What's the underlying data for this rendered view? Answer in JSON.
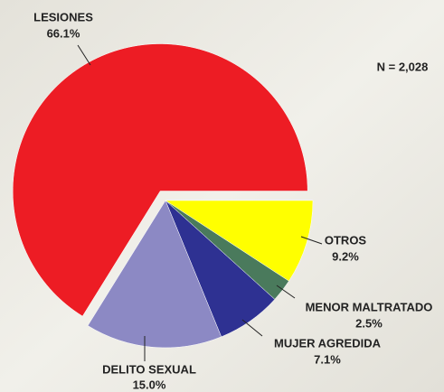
{
  "chart_data": {
    "type": "pie",
    "note": "N = 2,028",
    "categories": [
      "LESIONES",
      "OTROS",
      "MENOR MALTRATADO",
      "MUJER AGREDIDA",
      "DELITO SEXUAL"
    ],
    "values": [
      66.1,
      9.2,
      2.5,
      7.1,
      15.0
    ],
    "value_labels": [
      "66.1%",
      "9.2%",
      "2.5%",
      "7.1%",
      "15.0%"
    ],
    "colors": [
      "#ed1c24",
      "#ffff00",
      "#4a7a5c",
      "#2e3192",
      "#8c89c4"
    ]
  }
}
